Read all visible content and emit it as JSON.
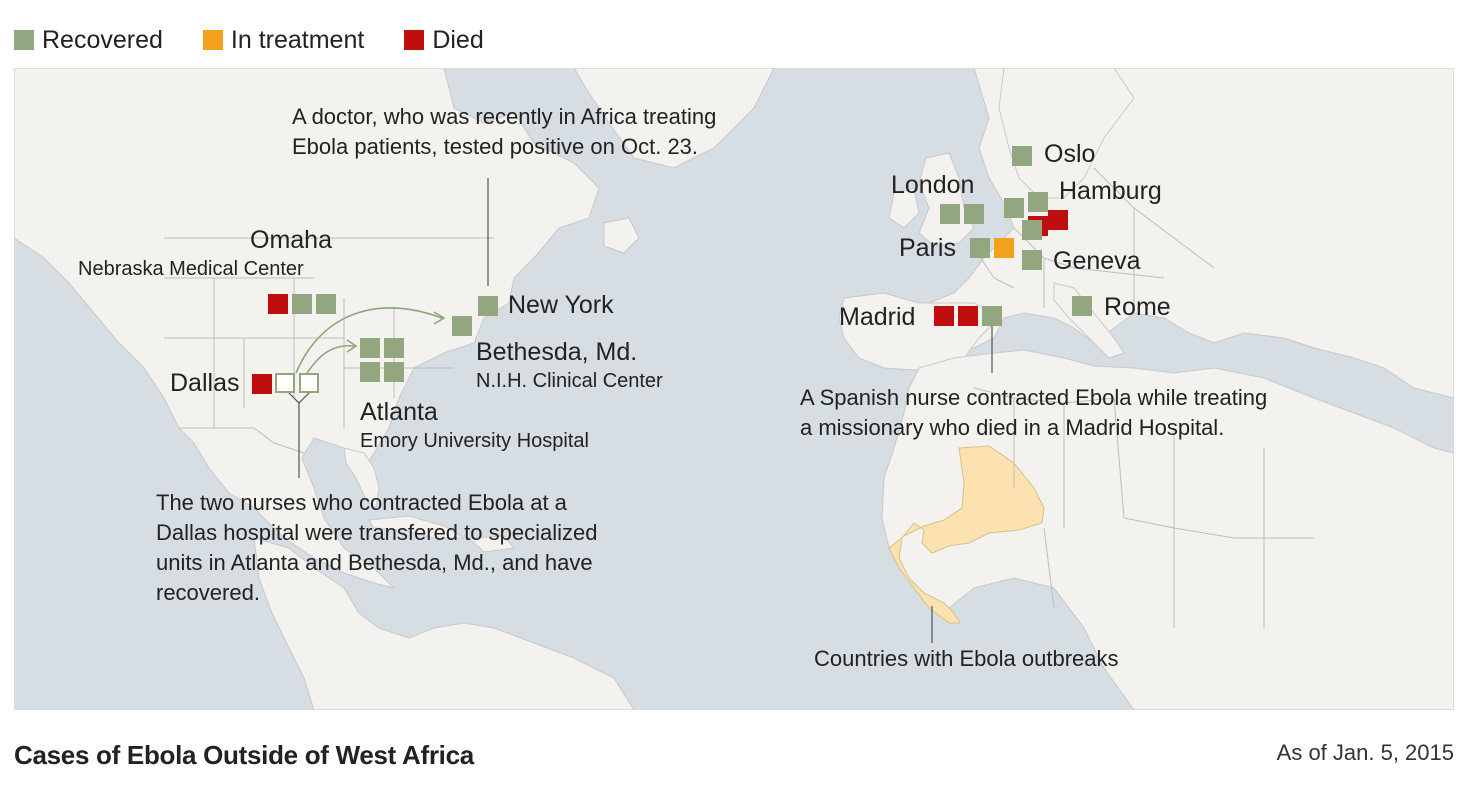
{
  "legend": {
    "recovered": {
      "label": "Recovered",
      "color": "#92a77f"
    },
    "in_treatment": {
      "label": "In treatment",
      "color": "#f3a01c"
    },
    "died": {
      "label": "Died",
      "color": "#c00d0d"
    }
  },
  "map": {
    "colors": {
      "water": "#d6dde3",
      "land": "#f3f2ef",
      "border": "#b9b9b9",
      "outbreak": "#fbe2b0"
    },
    "cities": {
      "omaha": "Omaha",
      "dallas": "Dallas",
      "atlanta": "Atlanta",
      "bethesda": "Bethesda, Md.",
      "new_york": "New York",
      "oslo": "Oslo",
      "london": "London",
      "hamburg": "Hamburg",
      "paris": "Paris",
      "geneva": "Geneva",
      "madrid": "Madrid",
      "rome": "Rome"
    },
    "hospitals": {
      "omaha": "Nebraska Medical Center",
      "atlanta": "Emory University Hospital",
      "bethesda": "N.I.H. Clinical Center"
    },
    "notes": {
      "doctor_line1": "A doctor, who was recently in Africa treating",
      "doctor_line2": "Ebola patients, tested positive on Oct. 23.",
      "nurses_line1": "The two nurses who contracted Ebola at a",
      "nurses_line2": "Dallas hospital were transfered to specialized",
      "nurses_line3": "units in Atlanta and Bethesda, Md., and have",
      "nurses_line4": "recovered.",
      "spain_line1": "A Spanish nurse contracted Ebola while treating",
      "spain_line2": "a missionary who died in a Madrid Hospital.",
      "outbreak": "Countries with Ebola outbreaks"
    },
    "cases": {
      "omaha": [
        "died",
        "recovered",
        "recovered"
      ],
      "dallas": [
        "died"
      ],
      "dallas_transferred": 2,
      "atlanta": [
        "recovered",
        "recovered",
        "recovered",
        "recovered"
      ],
      "bethesda": [
        "recovered"
      ],
      "new_york": [
        "recovered"
      ],
      "oslo": [
        "recovered"
      ],
      "london": [
        "recovered",
        "recovered"
      ],
      "hamburg": [
        "recovered",
        "died"
      ],
      "paris": [
        "recovered",
        "in_treatment"
      ],
      "geneva": [
        "recovered"
      ],
      "madrid": [
        "died",
        "died",
        "recovered"
      ],
      "rome": [
        "recovered"
      ]
    }
  },
  "footer": {
    "title": "Cases of Ebola Outside of West Africa",
    "date": "As of Jan. 5, 2015"
  }
}
